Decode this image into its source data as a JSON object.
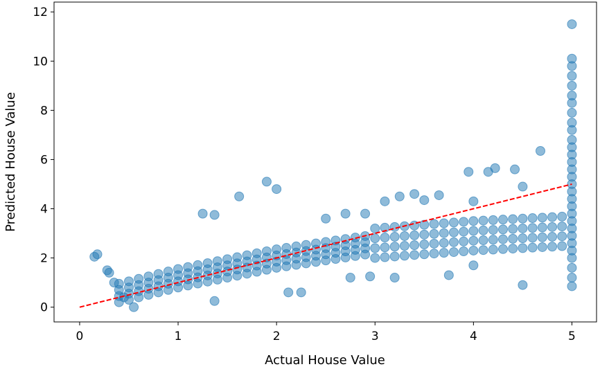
{
  "chart_data": {
    "type": "scatter",
    "title": "",
    "xlabel": "Actual House Value",
    "ylabel": "Predicted House Value",
    "xlim": [
      -0.26,
      5.25
    ],
    "ylim": [
      -0.6,
      12.4
    ],
    "xticks": [
      "0",
      "1",
      "2",
      "3",
      "4",
      "5"
    ],
    "yticks": [
      "0",
      "2",
      "4",
      "6",
      "8",
      "10",
      "12"
    ],
    "grid": false,
    "point_color": "#1f77b4",
    "point_alpha": 0.5,
    "reference_line": {
      "x": [
        0,
        5
      ],
      "y": [
        0,
        5
      ],
      "color": "#ff0000",
      "style": "dashed"
    },
    "core_points": [
      {
        "x": 0.4,
        "y": [
          0.2,
          0.45,
          0.7,
          0.95
        ]
      },
      {
        "x": 0.5,
        "y": [
          0.3,
          0.55,
          0.8,
          1.05
        ]
      },
      {
        "x": 0.6,
        "y": [
          0.4,
          0.65,
          0.9,
          1.15
        ]
      },
      {
        "x": 0.7,
        "y": [
          0.5,
          0.75,
          1.0,
          1.25
        ]
      },
      {
        "x": 0.8,
        "y": [
          0.6,
          0.85,
          1.1,
          1.35
        ]
      },
      {
        "x": 0.9,
        "y": [
          0.7,
          0.95,
          1.2,
          1.45
        ]
      },
      {
        "x": 1.0,
        "y": [
          0.8,
          1.05,
          1.3,
          1.55
        ]
      },
      {
        "x": 1.1,
        "y": [
          0.88,
          1.13,
          1.38,
          1.63
        ]
      },
      {
        "x": 1.2,
        "y": [
          0.96,
          1.21,
          1.46,
          1.71
        ]
      },
      {
        "x": 1.3,
        "y": [
          1.04,
          1.29,
          1.54,
          1.79
        ]
      },
      {
        "x": 1.4,
        "y": [
          1.12,
          1.37,
          1.62,
          1.87
        ]
      },
      {
        "x": 1.5,
        "y": [
          1.2,
          1.45,
          1.7,
          1.95
        ]
      },
      {
        "x": 1.6,
        "y": [
          1.28,
          1.53,
          1.78,
          2.03
        ]
      },
      {
        "x": 1.7,
        "y": [
          1.36,
          1.61,
          1.86,
          2.11
        ]
      },
      {
        "x": 1.8,
        "y": [
          1.44,
          1.69,
          1.94,
          2.19
        ]
      },
      {
        "x": 1.9,
        "y": [
          1.52,
          1.77,
          2.02,
          2.27
        ]
      },
      {
        "x": 2.0,
        "y": [
          1.6,
          1.85,
          2.1,
          2.35
        ]
      },
      {
        "x": 2.1,
        "y": [
          1.66,
          1.91,
          2.16,
          2.41
        ]
      },
      {
        "x": 2.2,
        "y": [
          1.72,
          1.97,
          2.22,
          2.47
        ]
      },
      {
        "x": 2.3,
        "y": [
          1.78,
          2.03,
          2.28,
          2.53
        ]
      },
      {
        "x": 2.4,
        "y": [
          1.84,
          2.09,
          2.34,
          2.59
        ]
      },
      {
        "x": 2.5,
        "y": [
          1.9,
          2.15,
          2.4,
          2.65
        ]
      },
      {
        "x": 2.6,
        "y": [
          1.96,
          2.21,
          2.46,
          2.71
        ]
      },
      {
        "x": 2.7,
        "y": [
          2.02,
          2.27,
          2.52,
          2.77
        ]
      },
      {
        "x": 2.8,
        "y": [
          2.08,
          2.33,
          2.58,
          2.83
        ]
      },
      {
        "x": 2.9,
        "y": [
          2.14,
          2.39,
          2.64,
          2.89
        ]
      },
      {
        "x": 3.0,
        "y": [
          2.0,
          2.4,
          2.8,
          3.2
        ]
      },
      {
        "x": 3.1,
        "y": [
          2.03,
          2.43,
          2.83,
          3.23
        ]
      },
      {
        "x": 3.2,
        "y": [
          2.06,
          2.46,
          2.86,
          3.26
        ]
      },
      {
        "x": 3.3,
        "y": [
          2.09,
          2.49,
          2.89,
          3.29
        ]
      },
      {
        "x": 3.4,
        "y": [
          2.12,
          2.52,
          2.92,
          3.32
        ]
      },
      {
        "x": 3.5,
        "y": [
          2.15,
          2.55,
          2.95,
          3.35
        ]
      },
      {
        "x": 3.6,
        "y": [
          2.18,
          2.58,
          2.98,
          3.38
        ]
      },
      {
        "x": 3.7,
        "y": [
          2.21,
          2.61,
          3.01,
          3.41
        ]
      },
      {
        "x": 3.8,
        "y": [
          2.24,
          2.64,
          3.04,
          3.44
        ]
      },
      {
        "x": 3.9,
        "y": [
          2.27,
          2.67,
          3.07,
          3.47
        ]
      },
      {
        "x": 4.0,
        "y": [
          2.3,
          2.7,
          3.1,
          3.5
        ]
      },
      {
        "x": 4.1,
        "y": [
          2.32,
          2.72,
          3.12,
          3.52
        ]
      },
      {
        "x": 4.2,
        "y": [
          2.34,
          2.74,
          3.14,
          3.54
        ]
      },
      {
        "x": 4.3,
        "y": [
          2.36,
          2.76,
          3.16,
          3.56
        ]
      },
      {
        "x": 4.4,
        "y": [
          2.38,
          2.78,
          3.18,
          3.58
        ]
      },
      {
        "x": 4.5,
        "y": [
          2.4,
          2.8,
          3.2,
          3.6
        ]
      },
      {
        "x": 4.6,
        "y": [
          2.42,
          2.82,
          3.22,
          3.62
        ]
      },
      {
        "x": 4.7,
        "y": [
          2.44,
          2.84,
          3.24,
          3.64
        ]
      },
      {
        "x": 4.8,
        "y": [
          2.46,
          2.86,
          3.26,
          3.66
        ]
      },
      {
        "x": 4.9,
        "y": [
          2.48,
          2.88,
          3.28,
          3.68
        ]
      },
      {
        "x": 5.0,
        "y": [
          0.85,
          1.2,
          1.6,
          2.0,
          2.3,
          2.6,
          2.9,
          3.2,
          3.5,
          3.8,
          4.1,
          4.4,
          4.7,
          5.0,
          5.3,
          5.6,
          5.9,
          6.2,
          6.5,
          6.8,
          7.2,
          7.5,
          7.9,
          8.3,
          8.6,
          9.0,
          9.4,
          9.8,
          10.1,
          11.5
        ]
      }
    ],
    "outliers": [
      [
        0.15,
        2.05
      ],
      [
        0.18,
        2.15
      ],
      [
        0.28,
        1.5
      ],
      [
        0.3,
        1.4
      ],
      [
        0.35,
        1.0
      ],
      [
        0.45,
        0.4
      ],
      [
        0.55,
        0.0
      ],
      [
        1.37,
        0.25
      ],
      [
        1.25,
        3.8
      ],
      [
        1.37,
        3.75
      ],
      [
        1.62,
        4.5
      ],
      [
        1.9,
        5.1
      ],
      [
        2.0,
        4.8
      ],
      [
        2.12,
        0.6
      ],
      [
        2.25,
        0.6
      ],
      [
        2.5,
        3.6
      ],
      [
        2.7,
        3.8
      ],
      [
        2.9,
        3.8
      ],
      [
        3.1,
        4.3
      ],
      [
        3.25,
        4.5
      ],
      [
        3.4,
        4.6
      ],
      [
        3.5,
        4.35
      ],
      [
        3.65,
        4.55
      ],
      [
        4.0,
        4.3
      ],
      [
        3.95,
        5.5
      ],
      [
        4.15,
        5.5
      ],
      [
        4.22,
        5.65
      ],
      [
        4.42,
        5.6
      ],
      [
        4.5,
        4.9
      ],
      [
        4.68,
        6.35
      ],
      [
        4.5,
        0.9
      ],
      [
        3.75,
        1.3
      ],
      [
        4.0,
        1.7
      ],
      [
        3.2,
        1.2
      ],
      [
        2.75,
        1.2
      ],
      [
        2.95,
        1.25
      ]
    ]
  }
}
